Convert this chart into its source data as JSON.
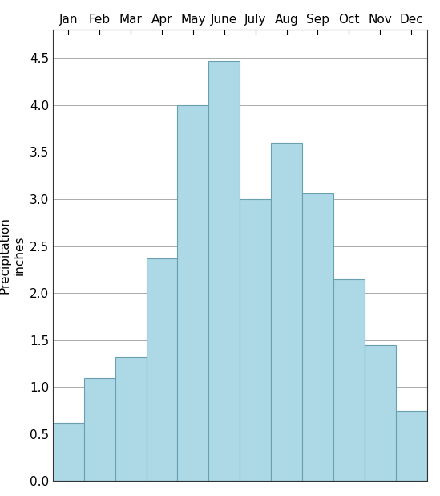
{
  "months": [
    "Jan",
    "Feb",
    "Mar",
    "Apr",
    "May",
    "June",
    "July",
    "Aug",
    "Sep",
    "Oct",
    "Nov",
    "Dec"
  ],
  "values": [
    0.62,
    1.1,
    1.32,
    2.37,
    4.0,
    4.47,
    3.0,
    3.6,
    3.06,
    2.15,
    1.45,
    0.75
  ],
  "bar_color": "#add8e6",
  "bar_edge_color": "#6a9fb0",
  "ylabel_line1": "Precipitation",
  "ylabel_line2": "inches",
  "ylim": [
    0.0,
    4.8
  ],
  "yticks": [
    0.0,
    0.5,
    1.0,
    1.5,
    2.0,
    2.5,
    3.0,
    3.5,
    4.0,
    4.5
  ],
  "background_color": "#ffffff",
  "grid_color": "#aaaaaa",
  "tick_label_fontsize": 11,
  "ylabel_fontsize": 11,
  "bar_width": 1.0,
  "figsize": [
    5.49,
    6.18
  ],
  "dpi": 100
}
